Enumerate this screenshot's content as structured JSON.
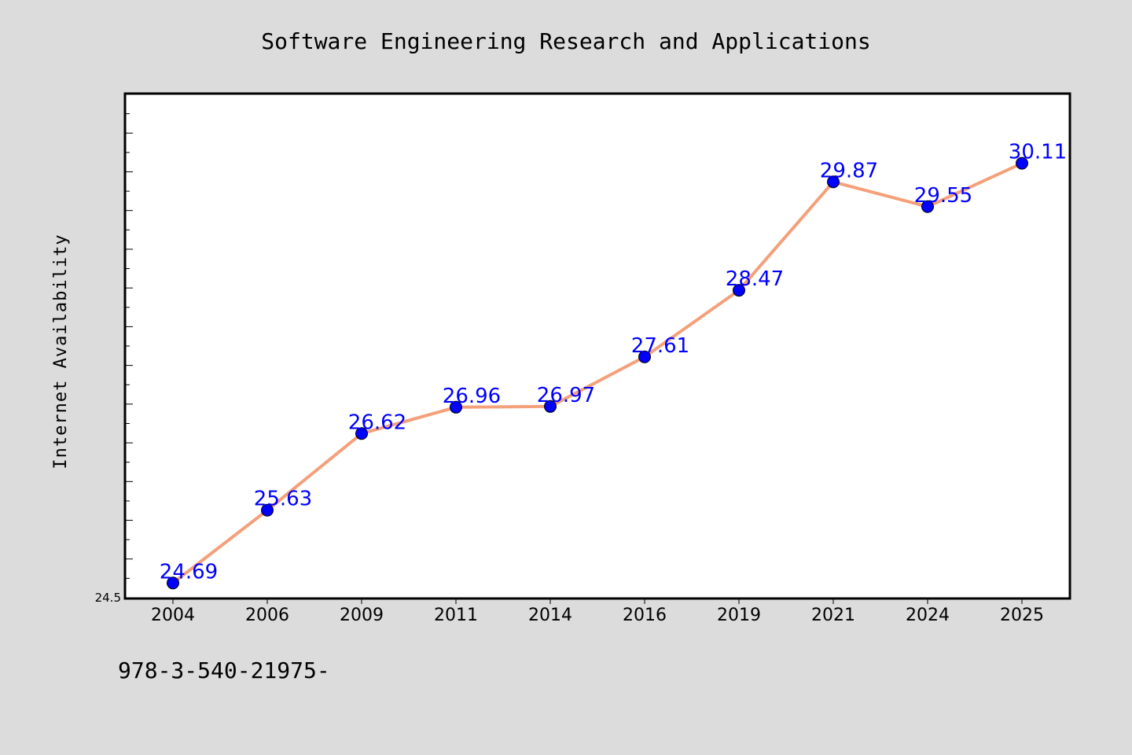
{
  "chart_data": {
    "type": "line",
    "title": "Software Engineering Research and Applications",
    "xlabel": "",
    "ylabel": "Internet Availability",
    "categories": [
      "2004",
      "2006",
      "2009",
      "2011",
      "2014",
      "2016",
      "2019",
      "2021",
      "2024",
      "2025"
    ],
    "values": [
      24.69,
      25.63,
      26.62,
      26.96,
      26.97,
      27.61,
      28.47,
      29.87,
      29.55,
      30.11
    ],
    "data_labels": [
      "24.69",
      "25.63",
      "26.62",
      "26.96",
      "26.97",
      "27.61",
      "28.47",
      "29.87",
      "29.55",
      "30.11"
    ],
    "y_tick_labels": [
      "24.5"
    ],
    "ylim": [
      24.5,
      31.0
    ],
    "grid": false,
    "colors": {
      "line": "#f4a07a",
      "marker": "#0000ff",
      "label": "#0000ff",
      "background": "#dcdcdc",
      "plot_background": "#ffffff"
    }
  },
  "footnote": "978-3-540-21975-"
}
